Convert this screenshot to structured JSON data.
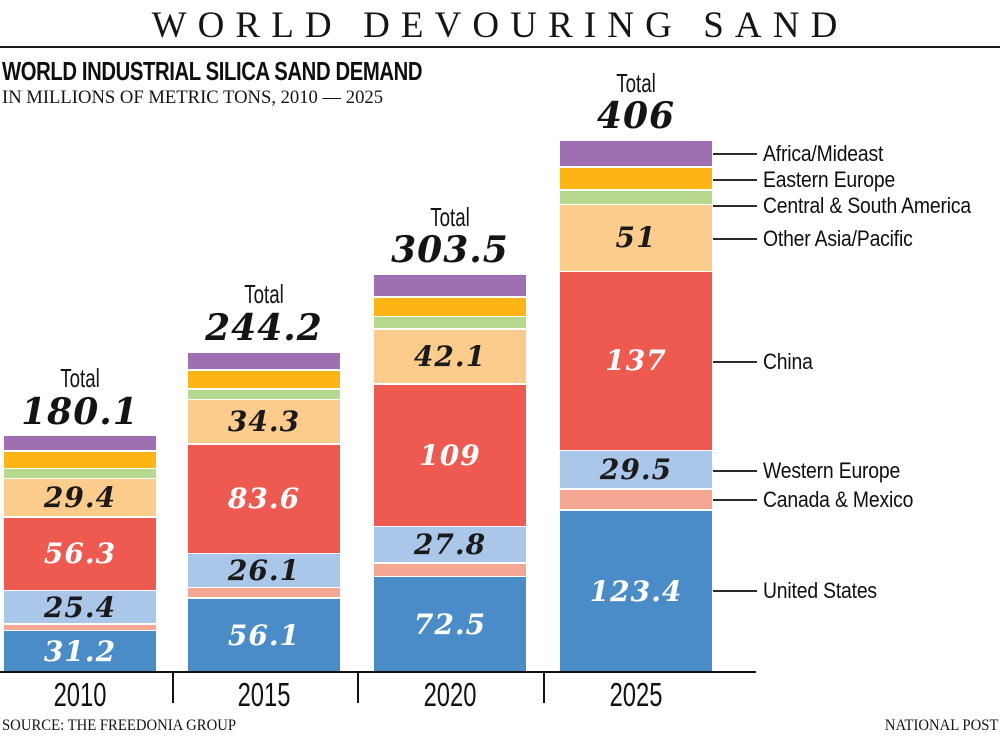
{
  "header": {
    "title": "WORLD DEVOURING SAND"
  },
  "footer": {
    "source": "SOURCE: THE FREEDONIA GROUP",
    "credit": "NATIONAL POST"
  },
  "chart_data": {
    "type": "bar",
    "stacked": true,
    "title": "WORLD INDUSTRIAL SILICA SAND DEMAND",
    "units_line": "IN MILLIONS OF METRIC TONS, 2010 — 2025",
    "total_label": "Total",
    "categories": [
      "2010",
      "2015",
      "2020",
      "2025"
    ],
    "totals": [
      180.1,
      244.2,
      303.5,
      406
    ],
    "legend_position": "right",
    "colors": {
      "axis": "#111111",
      "leader_line": "#2b2b2b",
      "white_gap": "#ffffff"
    },
    "series": [
      {
        "name": "United States",
        "color": "#4a8cc7",
        "values": [
          31.2,
          56.1,
          72.5,
          123.4
        ],
        "show_value_labels": true,
        "label_color": "#ffffff"
      },
      {
        "name": "Canada & Mexico",
        "color": "#f6a793",
        "values": [
          5.0,
          7.8,
          10.4,
          15.8
        ],
        "show_value_labels": false,
        "values_estimated": true
      },
      {
        "name": "Western Europe",
        "color": "#aac6e8",
        "values": [
          25.4,
          26.1,
          27.8,
          29.5
        ],
        "show_value_labels": true,
        "label_color": "#1a1a1a"
      },
      {
        "name": "China",
        "color": "#ee5a50",
        "values": [
          56.3,
          83.6,
          109,
          137
        ],
        "show_value_labels": true,
        "label_color": "#ffffff"
      },
      {
        "name": "Other Asia/Pacific",
        "color": "#fccc8d",
        "values": [
          29.4,
          34.3,
          42.1,
          51
        ],
        "show_value_labels": true,
        "label_color": "#1a1a1a"
      },
      {
        "name": "Central & South America",
        "color": "#b7d98e",
        "values": [
          7.6,
          7.8,
          9.6,
          11.4
        ],
        "show_value_labels": false,
        "values_estimated": true
      },
      {
        "name": "Eastern Europe",
        "color": "#fdb515",
        "values": [
          13.4,
          14.7,
          14.8,
          17.6
        ],
        "show_value_labels": false,
        "values_estimated": true
      },
      {
        "name": "Africa/Mideast",
        "color": "#a06fb2",
        "values": [
          11.8,
          13.8,
          17.4,
          20.2
        ],
        "show_value_labels": false,
        "values_estimated": true
      }
    ]
  }
}
